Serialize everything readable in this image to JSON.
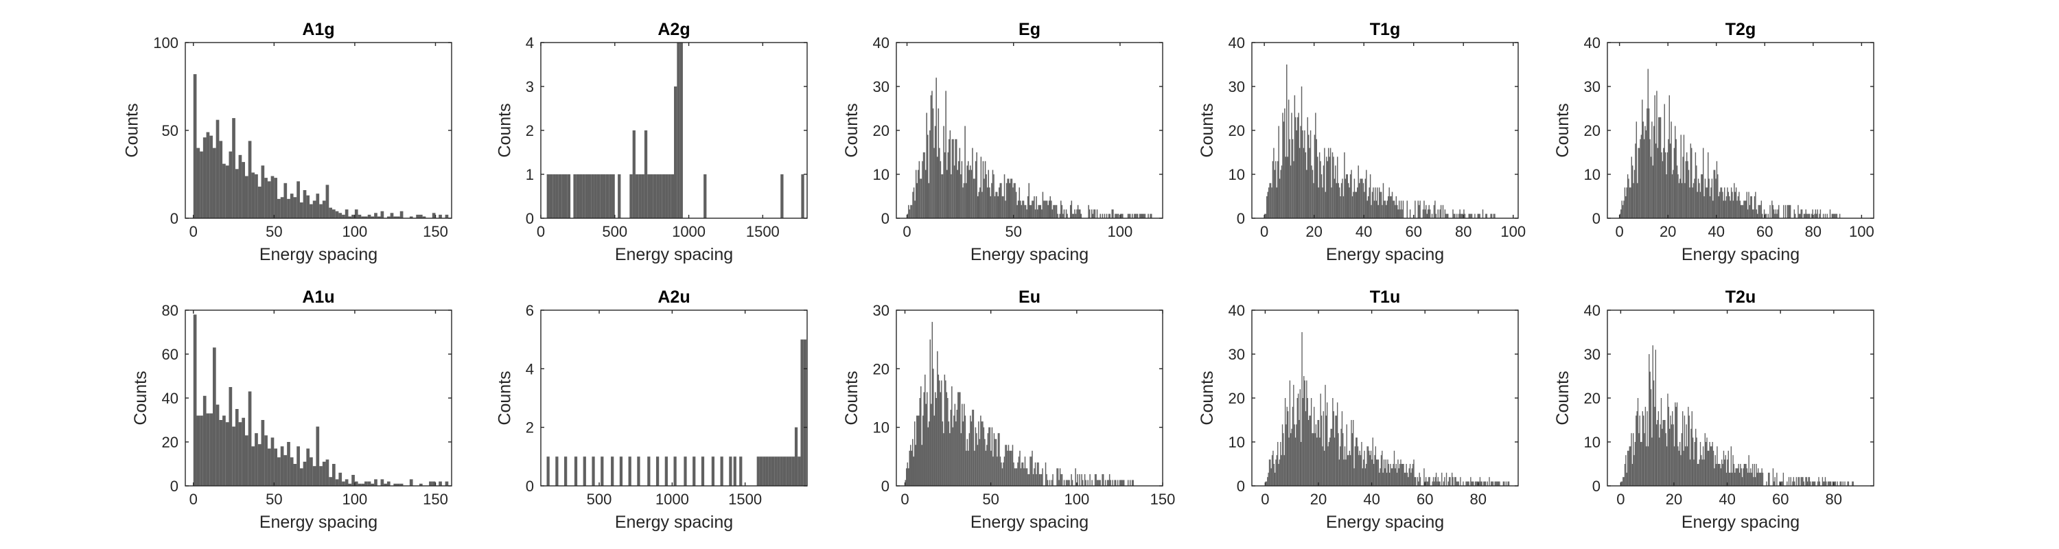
{
  "figure": {
    "bar_color": "#606060",
    "axis_color": "#262626",
    "background": "#ffffff"
  },
  "chart_data": [
    {
      "type": "bar",
      "title": "A1g",
      "xlabel": "Energy spacing",
      "ylabel": "Counts",
      "xlim": [
        -5,
        160
      ],
      "ylim": [
        0,
        100
      ],
      "xticks": [
        0,
        50,
        100,
        150
      ],
      "yticks": [
        0,
        50,
        100
      ],
      "bin_width": 2,
      "x": [
        1,
        3,
        5,
        7,
        9,
        11,
        13,
        15,
        17,
        19,
        21,
        23,
        25,
        27,
        29,
        31,
        33,
        35,
        37,
        39,
        41,
        43,
        45,
        47,
        49,
        51,
        53,
        55,
        57,
        59,
        61,
        63,
        65,
        67,
        69,
        71,
        73,
        75,
        77,
        79,
        81,
        83,
        85,
        87,
        89,
        91,
        93,
        95,
        97,
        99,
        101,
        103,
        105,
        107,
        109,
        111,
        113,
        115,
        117,
        119,
        121,
        123,
        125,
        127,
        129,
        131,
        133,
        135,
        137,
        139,
        141,
        143,
        145,
        147,
        149,
        151,
        153,
        155,
        157
      ],
      "values": [
        82,
        40,
        38,
        46,
        49,
        47,
        40,
        56,
        44,
        31,
        30,
        38,
        57,
        28,
        36,
        32,
        24,
        44,
        26,
        25,
        18,
        30,
        23,
        21,
        24,
        23,
        11,
        12,
        20,
        11,
        14,
        12,
        21,
        9,
        16,
        13,
        8,
        10,
        14,
        8,
        10,
        19,
        6,
        5,
        4,
        3,
        2,
        5,
        1,
        2,
        5,
        2,
        1,
        1,
        2,
        1,
        3,
        1,
        4,
        0,
        1,
        3,
        1,
        1,
        4,
        0,
        0,
        1,
        0,
        2,
        2,
        1,
        0,
        0,
        3,
        0,
        2,
        0,
        2
      ]
    },
    {
      "type": "bar",
      "title": "A2g",
      "xlabel": "Energy spacing",
      "ylabel": "Counts",
      "xlim": [
        0,
        1800
      ],
      "ylim": [
        0,
        4
      ],
      "xticks": [
        0,
        500,
        1000,
        1500
      ],
      "yticks": [
        0,
        1,
        2,
        3,
        4
      ],
      "bin_width": 20,
      "x": [
        50,
        70,
        90,
        110,
        130,
        150,
        170,
        190,
        230,
        250,
        270,
        290,
        310,
        330,
        350,
        370,
        390,
        410,
        430,
        450,
        470,
        490,
        530,
        610,
        630,
        650,
        670,
        690,
        710,
        730,
        750,
        770,
        790,
        810,
        830,
        850,
        870,
        890,
        910,
        930,
        950,
        1110,
        1630,
        1770
      ],
      "values": [
        1,
        1,
        1,
        1,
        1,
        1,
        1,
        1,
        1,
        1,
        1,
        1,
        1,
        1,
        1,
        1,
        1,
        1,
        1,
        1,
        1,
        1,
        1,
        1,
        2,
        1,
        1,
        1,
        2,
        1,
        1,
        1,
        1,
        1,
        1,
        1,
        1,
        1,
        3,
        4,
        4,
        1,
        1,
        1
      ]
    },
    {
      "type": "bar",
      "title": "Eg",
      "xlabel": "Energy spacing",
      "ylabel": "Counts",
      "xlim": [
        -5,
        120
      ],
      "ylim": [
        0,
        40
      ],
      "xticks": [
        0,
        50,
        100
      ],
      "yticks": [
        0,
        10,
        20,
        30,
        40
      ],
      "bin_width": 0.5,
      "distribution": {
        "peak_x": 14,
        "peak_count": 22,
        "tail_end": 115,
        "max_spike": 32
      }
    },
    {
      "type": "bar",
      "title": "T1g",
      "xlabel": "Energy spacing",
      "ylabel": "Counts",
      "xlim": [
        -5,
        102
      ],
      "ylim": [
        0,
        40
      ],
      "xticks": [
        0,
        20,
        40,
        60,
        80,
        100
      ],
      "yticks": [
        0,
        10,
        20,
        30,
        40
      ],
      "bin_width": 0.4,
      "distribution": {
        "peak_x": 9,
        "peak_count": 25,
        "tail_end": 93,
        "max_spike": 35
      }
    },
    {
      "type": "bar",
      "title": "T2g",
      "xlabel": "Energy spacing",
      "ylabel": "Counts",
      "xlim": [
        -5,
        105
      ],
      "ylim": [
        0,
        40
      ],
      "xticks": [
        0,
        20,
        40,
        60,
        80,
        100
      ],
      "yticks": [
        0,
        10,
        20,
        30,
        40
      ],
      "bin_width": 0.4,
      "distribution": {
        "peak_x": 12,
        "peak_count": 27,
        "tail_end": 92,
        "max_spike": 34
      }
    },
    {
      "type": "bar",
      "title": "A1u",
      "xlabel": "Energy spacing",
      "ylabel": "Counts",
      "xlim": [
        -5,
        160
      ],
      "ylim": [
        0,
        80
      ],
      "xticks": [
        0,
        50,
        100,
        150
      ],
      "yticks": [
        0,
        20,
        40,
        60,
        80
      ],
      "bin_width": 2,
      "x": [
        1,
        3,
        5,
        7,
        9,
        11,
        13,
        15,
        17,
        19,
        21,
        23,
        25,
        27,
        29,
        31,
        33,
        35,
        37,
        39,
        41,
        43,
        45,
        47,
        49,
        51,
        53,
        55,
        57,
        59,
        61,
        63,
        65,
        67,
        69,
        71,
        73,
        75,
        77,
        79,
        81,
        83,
        85,
        87,
        89,
        91,
        93,
        95,
        97,
        99,
        101,
        103,
        105,
        107,
        109,
        111,
        113,
        115,
        117,
        119,
        121,
        123,
        125,
        127,
        129,
        131,
        133,
        135,
        137,
        139,
        141,
        143,
        145,
        147,
        149,
        151,
        153,
        155,
        157
      ],
      "values": [
        78,
        32,
        32,
        41,
        33,
        33,
        63,
        37,
        30,
        32,
        29,
        45,
        27,
        35,
        29,
        31,
        23,
        43,
        18,
        24,
        19,
        30,
        23,
        17,
        22,
        17,
        13,
        18,
        14,
        20,
        13,
        10,
        18,
        8,
        11,
        17,
        13,
        9,
        27,
        9,
        11,
        12,
        4,
        10,
        3,
        6,
        2,
        3,
        1,
        5,
        2,
        1,
        1,
        2,
        2,
        1,
        3,
        0,
        3,
        1,
        2,
        0,
        1,
        1,
        1,
        0,
        0,
        3,
        0,
        0,
        1,
        0,
        0,
        2,
        2,
        0,
        2,
        0,
        2
      ]
    },
    {
      "type": "bar",
      "title": "A2u",
      "xlabel": "Energy spacing",
      "ylabel": "Counts",
      "xlim": [
        100,
        1925
      ],
      "ylim": [
        0,
        6
      ],
      "xticks": [
        500,
        1000,
        1500
      ],
      "yticks": [
        0,
        2,
        4,
        6
      ],
      "bin_width": 20,
      "x": [
        150,
        210,
        270,
        340,
        400,
        460,
        520,
        590,
        650,
        710,
        770,
        840,
        900,
        960,
        1020,
        1090,
        1150,
        1210,
        1280,
        1340,
        1400,
        1430,
        1470,
        1590,
        1610,
        1630,
        1650,
        1670,
        1690,
        1710,
        1730,
        1750,
        1770,
        1790,
        1810,
        1830,
        1850,
        1870,
        1890,
        1910
      ],
      "values": [
        1,
        1,
        1,
        1,
        1,
        1,
        1,
        1,
        1,
        1,
        1,
        1,
        1,
        1,
        1,
        1,
        1,
        1,
        1,
        1,
        1,
        1,
        1,
        1,
        1,
        1,
        1,
        1,
        1,
        1,
        1,
        1,
        1,
        1,
        1,
        1,
        2,
        1,
        5,
        5
      ]
    },
    {
      "type": "bar",
      "title": "Eu",
      "xlabel": "Energy spacing",
      "ylabel": "Counts",
      "xlim": [
        -5,
        150
      ],
      "ylim": [
        0,
        30
      ],
      "xticks": [
        0,
        50,
        100,
        150
      ],
      "yticks": [
        0,
        10,
        20,
        30
      ],
      "bin_width": 0.6,
      "distribution": {
        "peak_x": 16,
        "peak_count": 21,
        "tail_end": 133,
        "max_spike": 28
      }
    },
    {
      "type": "bar",
      "title": "T1u",
      "xlabel": "Energy spacing",
      "ylabel": "Counts",
      "xlim": [
        -5,
        95
      ],
      "ylim": [
        0,
        40
      ],
      "xticks": [
        0,
        20,
        40,
        60,
        80
      ],
      "yticks": [
        0,
        10,
        20,
        30,
        40
      ],
      "bin_width": 0.35,
      "distribution": {
        "peak_x": 14,
        "peak_count": 22,
        "tail_end": 92,
        "max_spike": 35
      }
    },
    {
      "type": "bar",
      "title": "T2u",
      "xlabel": "Energy spacing",
      "ylabel": "Counts",
      "xlim": [
        -5,
        95
      ],
      "ylim": [
        0,
        40
      ],
      "xticks": [
        0,
        20,
        40,
        60,
        80
      ],
      "yticks": [
        0,
        10,
        20,
        30,
        40
      ],
      "bin_width": 0.35,
      "distribution": {
        "peak_x": 12,
        "peak_count": 22,
        "tail_end": 88,
        "max_spike": 32
      }
    }
  ]
}
